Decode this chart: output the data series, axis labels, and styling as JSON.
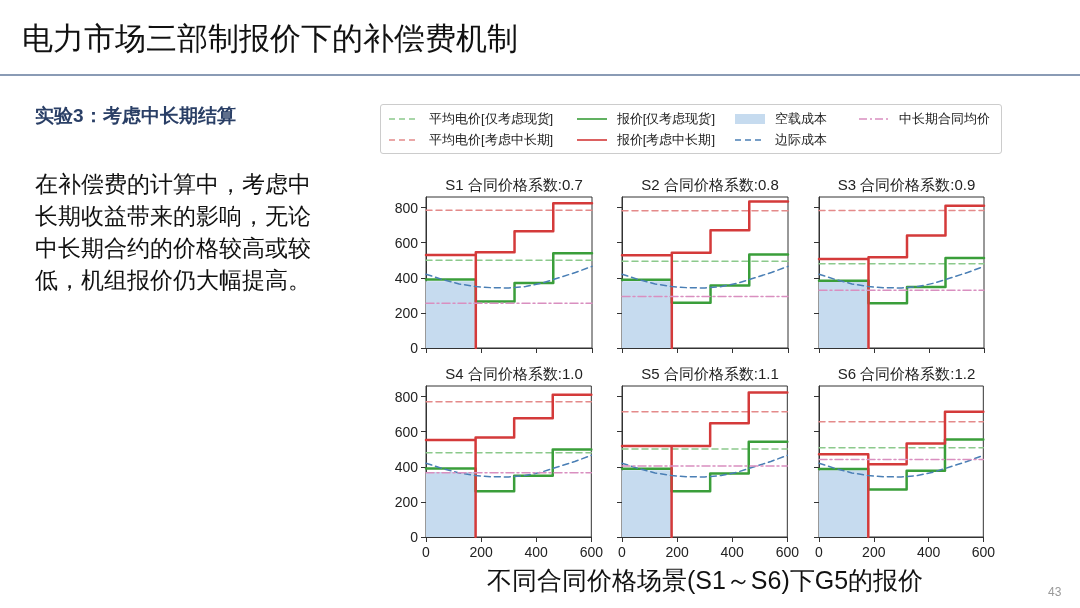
{
  "chart_data": [
    {
      "type": "line",
      "title": "S1 合同价格系数:0.7",
      "legend": "top",
      "tick_labels": "y",
      "grid": false,
      "marker": "none",
      "xlim": [
        0,
        600
      ],
      "xticks": [
        0,
        200,
        400,
        600
      ],
      "ylim": [
        0,
        860
      ],
      "yticks": [
        0,
        200,
        400,
        600,
        800
      ],
      "annotations": [
        "电力市场三部制报价下的补偿费机制",
        "实验3：考虑中长期结算",
        "在补偿费的计算中，考虑中长期收益带来的影响，无论中长期合约的价格较高或较低，机组报价仍大幅提高。",
        "不同合同价格场景(S1～S6)下G5的报价",
        "43"
      ],
      "series": [
        {
          "name": "平均电价[仅考虑现货]",
          "color": "#8cc98c",
          "line_style": "dashed",
          "x": [
            0,
            600
          ],
          "values": [
            500,
            500
          ]
        },
        {
          "name": "平均电价[考虑中长期]",
          "color": "#e48a8a",
          "line_style": "dashed",
          "x": [
            0,
            600
          ],
          "values": [
            785,
            785
          ]
        },
        {
          "name": "报价[仅考虑现货]",
          "type": "step",
          "color": "#3a9e3a",
          "line_style": "solid",
          "x": [
            0,
            180,
            320,
            460,
            600
          ],
          "values": [
            390,
            265,
            370,
            540,
            540
          ]
        },
        {
          "name": "报价[考虑中长期]",
          "color": "#d43a3a",
          "line_style": "solid",
          "x": [
            0,
            180,
            180,
            180,
            320,
            320,
            460,
            460,
            600
          ],
          "values": [
            530,
            530,
            0,
            545,
            545,
            665,
            665,
            825,
            825
          ]
        },
        {
          "name": "空载成本",
          "type": "area",
          "color": "#c6dbef",
          "x": [
            0,
            180
          ],
          "values": [
            380,
            380
          ]
        },
        {
          "name": "边际成本",
          "color": "#4a7fb5",
          "line_style": "dashed",
          "x": [
            0,
            60,
            120,
            180,
            240,
            300,
            360,
            420,
            480,
            540,
            600
          ],
          "values": [
            420,
            390,
            365,
            350,
            343,
            342,
            350,
            370,
            400,
            430,
            465
          ]
        },
        {
          "name": "中长期合同均价",
          "color": "#d98fc0",
          "line_style": "dashdot",
          "x": [
            0,
            600
          ],
          "values": [
            255,
            255
          ]
        }
      ]
    },
    {
      "type": "line",
      "title": "S2 合同价格系数:0.8",
      "tick_labels": false,
      "grid": false,
      "marker": "none",
      "xlim": [
        0,
        600
      ],
      "xticks": [
        0,
        200,
        400,
        600
      ],
      "ylim": [
        0,
        860
      ],
      "yticks": [
        0,
        200,
        400,
        600,
        800
      ],
      "series": [
        {
          "color": "#8cc98c",
          "line_style": "dashed",
          "x": [
            0,
            600
          ],
          "values": [
            494,
            494
          ]
        },
        {
          "color": "#e48a8a",
          "line_style": "dashed",
          "x": [
            0,
            600
          ],
          "values": [
            781,
            781
          ]
        },
        {
          "type": "step",
          "color": "#3a9e3a",
          "line_style": "solid",
          "x": [
            0,
            180,
            320,
            460,
            600
          ],
          "values": [
            389,
            258,
            356,
            532,
            532
          ]
        },
        {
          "color": "#d43a3a",
          "line_style": "solid",
          "x": [
            0,
            180,
            180,
            180,
            320,
            320,
            460,
            460,
            600
          ],
          "values": [
            528,
            528,
            0,
            542,
            542,
            670,
            670,
            834,
            834
          ]
        },
        {
          "type": "area",
          "color": "#c6dbef",
          "x": [
            0,
            180
          ],
          "values": [
            380,
            380
          ]
        },
        {
          "color": "#4a7fb5",
          "line_style": "dashed",
          "x": [
            0,
            60,
            120,
            180,
            240,
            300,
            360,
            420,
            480,
            540,
            600
          ],
          "values": [
            420,
            390,
            365,
            350,
            343,
            342,
            350,
            370,
            400,
            430,
            465
          ]
        },
        {
          "color": "#d98fc0",
          "line_style": "dashdot",
          "x": [
            0,
            600
          ],
          "values": [
            293,
            293
          ]
        }
      ]
    },
    {
      "type": "line",
      "title": "S3 合同价格系数:0.9",
      "tick_labels": false,
      "grid": false,
      "marker": "none",
      "xlim": [
        0,
        600
      ],
      "xticks": [
        0,
        200,
        400,
        600
      ],
      "ylim": [
        0,
        860
      ],
      "yticks": [
        0,
        200,
        400,
        600,
        800
      ],
      "series": [
        {
          "color": "#8cc98c",
          "line_style": "dashed",
          "x": [
            0,
            600
          ],
          "values": [
            480,
            480
          ]
        },
        {
          "color": "#e48a8a",
          "line_style": "dashed",
          "x": [
            0,
            600
          ],
          "values": [
            783,
            783
          ]
        },
        {
          "type": "step",
          "color": "#3a9e3a",
          "line_style": "solid",
          "x": [
            0,
            180,
            320,
            460,
            600
          ],
          "values": [
            383,
            255,
            348,
            513,
            513
          ]
        },
        {
          "color": "#d43a3a",
          "line_style": "solid",
          "x": [
            0,
            180,
            180,
            180,
            320,
            320,
            460,
            460,
            600
          ],
          "values": [
            507,
            507,
            0,
            517,
            517,
            641,
            641,
            810,
            810
          ]
        },
        {
          "type": "area",
          "color": "#c6dbef",
          "x": [
            0,
            180
          ],
          "values": [
            380,
            380
          ]
        },
        {
          "color": "#4a7fb5",
          "line_style": "dashed",
          "x": [
            0,
            60,
            120,
            180,
            240,
            300,
            360,
            420,
            480,
            540,
            600
          ],
          "values": [
            420,
            390,
            365,
            350,
            343,
            342,
            350,
            370,
            400,
            430,
            465
          ]
        },
        {
          "color": "#d98fc0",
          "line_style": "dashdot",
          "x": [
            0,
            600
          ],
          "values": [
            329,
            329
          ]
        }
      ]
    },
    {
      "type": "line",
      "title": "S4 合同价格系数:1.0",
      "grid": false,
      "marker": "none",
      "xlim": [
        0,
        600
      ],
      "xticks": [
        0,
        200,
        400,
        600
      ],
      "ylim": [
        0,
        860
      ],
      "yticks": [
        0,
        200,
        400,
        600,
        800
      ],
      "series": [
        {
          "color": "#8cc98c",
          "line_style": "dashed",
          "x": [
            0,
            600
          ],
          "values": [
            480,
            480
          ]
        },
        {
          "color": "#e48a8a",
          "line_style": "dashed",
          "x": [
            0,
            600
          ],
          "values": [
            771,
            771
          ]
        },
        {
          "type": "step",
          "color": "#3a9e3a",
          "line_style": "solid",
          "x": [
            0,
            180,
            320,
            460,
            600
          ],
          "values": [
            390,
            261,
            349,
            499,
            499
          ]
        },
        {
          "color": "#d43a3a",
          "line_style": "solid",
          "x": [
            0,
            180,
            180,
            180,
            320,
            320,
            460,
            460,
            600
          ],
          "values": [
            552,
            552,
            0,
            566,
            566,
            676,
            676,
            810,
            810
          ]
        },
        {
          "type": "area",
          "color": "#c6dbef",
          "x": [
            0,
            180
          ],
          "values": [
            370,
            370
          ]
        },
        {
          "color": "#4a7fb5",
          "line_style": "dashed",
          "x": [
            0,
            60,
            120,
            180,
            240,
            300,
            360,
            420,
            480,
            540,
            600
          ],
          "values": [
            420,
            390,
            365,
            350,
            343,
            342,
            350,
            370,
            400,
            430,
            465
          ]
        },
        {
          "color": "#d98fc0",
          "line_style": "dashdot",
          "x": [
            0,
            600
          ],
          "values": [
            366,
            366
          ]
        }
      ]
    },
    {
      "type": "line",
      "title": "S5 合同价格系数:1.1",
      "tick_labels": "x",
      "grid": false,
      "marker": "none",
      "xlim": [
        0,
        600
      ],
      "xticks": [
        0,
        200,
        400,
        600
      ],
      "ylim": [
        0,
        860
      ],
      "yticks": [
        0,
        200,
        400,
        600,
        800
      ],
      "series": [
        {
          "color": "#8cc98c",
          "line_style": "dashed",
          "x": [
            0,
            600
          ],
          "values": [
            501,
            501
          ]
        },
        {
          "color": "#e48a8a",
          "line_style": "dashed",
          "x": [
            0,
            600
          ],
          "values": [
            713,
            713
          ]
        },
        {
          "type": "step",
          "color": "#3a9e3a",
          "line_style": "solid",
          "x": [
            0,
            180,
            320,
            460,
            600
          ],
          "values": [
            389,
            261,
            362,
            543,
            543
          ]
        },
        {
          "color": "#d43a3a",
          "line_style": "solid",
          "x": [
            0,
            180,
            180,
            180,
            320,
            320,
            460,
            460,
            600
          ],
          "values": [
            518,
            518,
            0,
            518,
            518,
            648,
            648,
            823,
            823
          ]
        },
        {
          "type": "area",
          "color": "#c6dbef",
          "x": [
            0,
            180
          ],
          "values": [
            380,
            380
          ]
        },
        {
          "color": "#4a7fb5",
          "line_style": "dashed",
          "x": [
            0,
            60,
            120,
            180,
            240,
            300,
            360,
            420,
            480,
            540,
            600
          ],
          "values": [
            420,
            390,
            365,
            350,
            343,
            342,
            350,
            370,
            400,
            430,
            465
          ]
        },
        {
          "color": "#d98fc0",
          "line_style": "dashdot",
          "x": [
            0,
            600
          ],
          "values": [
            404,
            404
          ]
        }
      ]
    },
    {
      "type": "line",
      "title": "S6 合同价格系数:1.2",
      "tick_labels": "x",
      "grid": false,
      "marker": "none",
      "xlim": [
        0,
        600
      ],
      "xticks": [
        0,
        200,
        400,
        600
      ],
      "ylim": [
        0,
        860
      ],
      "yticks": [
        0,
        200,
        400,
        600,
        800
      ],
      "series": [
        {
          "color": "#8cc98c",
          "line_style": "dashed",
          "x": [
            0,
            600
          ],
          "values": [
            508,
            508
          ]
        },
        {
          "color": "#e48a8a",
          "line_style": "dashed",
          "x": [
            0,
            600
          ],
          "values": [
            657,
            657
          ]
        },
        {
          "type": "step",
          "color": "#3a9e3a",
          "line_style": "solid",
          "x": [
            0,
            180,
            320,
            460,
            600
          ],
          "values": [
            387,
            270,
            378,
            556,
            556
          ]
        },
        {
          "color": "#d43a3a",
          "line_style": "solid",
          "x": [
            0,
            180,
            180,
            180,
            320,
            320,
            460,
            460,
            600
          ],
          "values": [
            472,
            472,
            0,
            415,
            415,
            533,
            533,
            714,
            714
          ]
        },
        {
          "type": "area",
          "color": "#c6dbef",
          "x": [
            0,
            180
          ],
          "values": [
            380,
            380
          ]
        },
        {
          "color": "#4a7fb5",
          "line_style": "dashed",
          "x": [
            0,
            60,
            120,
            180,
            240,
            300,
            360,
            420,
            480,
            540,
            600
          ],
          "values": [
            420,
            390,
            365,
            350,
            343,
            342,
            350,
            370,
            400,
            430,
            465
          ]
        },
        {
          "color": "#d98fc0",
          "line_style": "dashdot",
          "x": [
            0,
            600
          ],
          "values": [
            442,
            442
          ]
        }
      ]
    }
  ]
}
